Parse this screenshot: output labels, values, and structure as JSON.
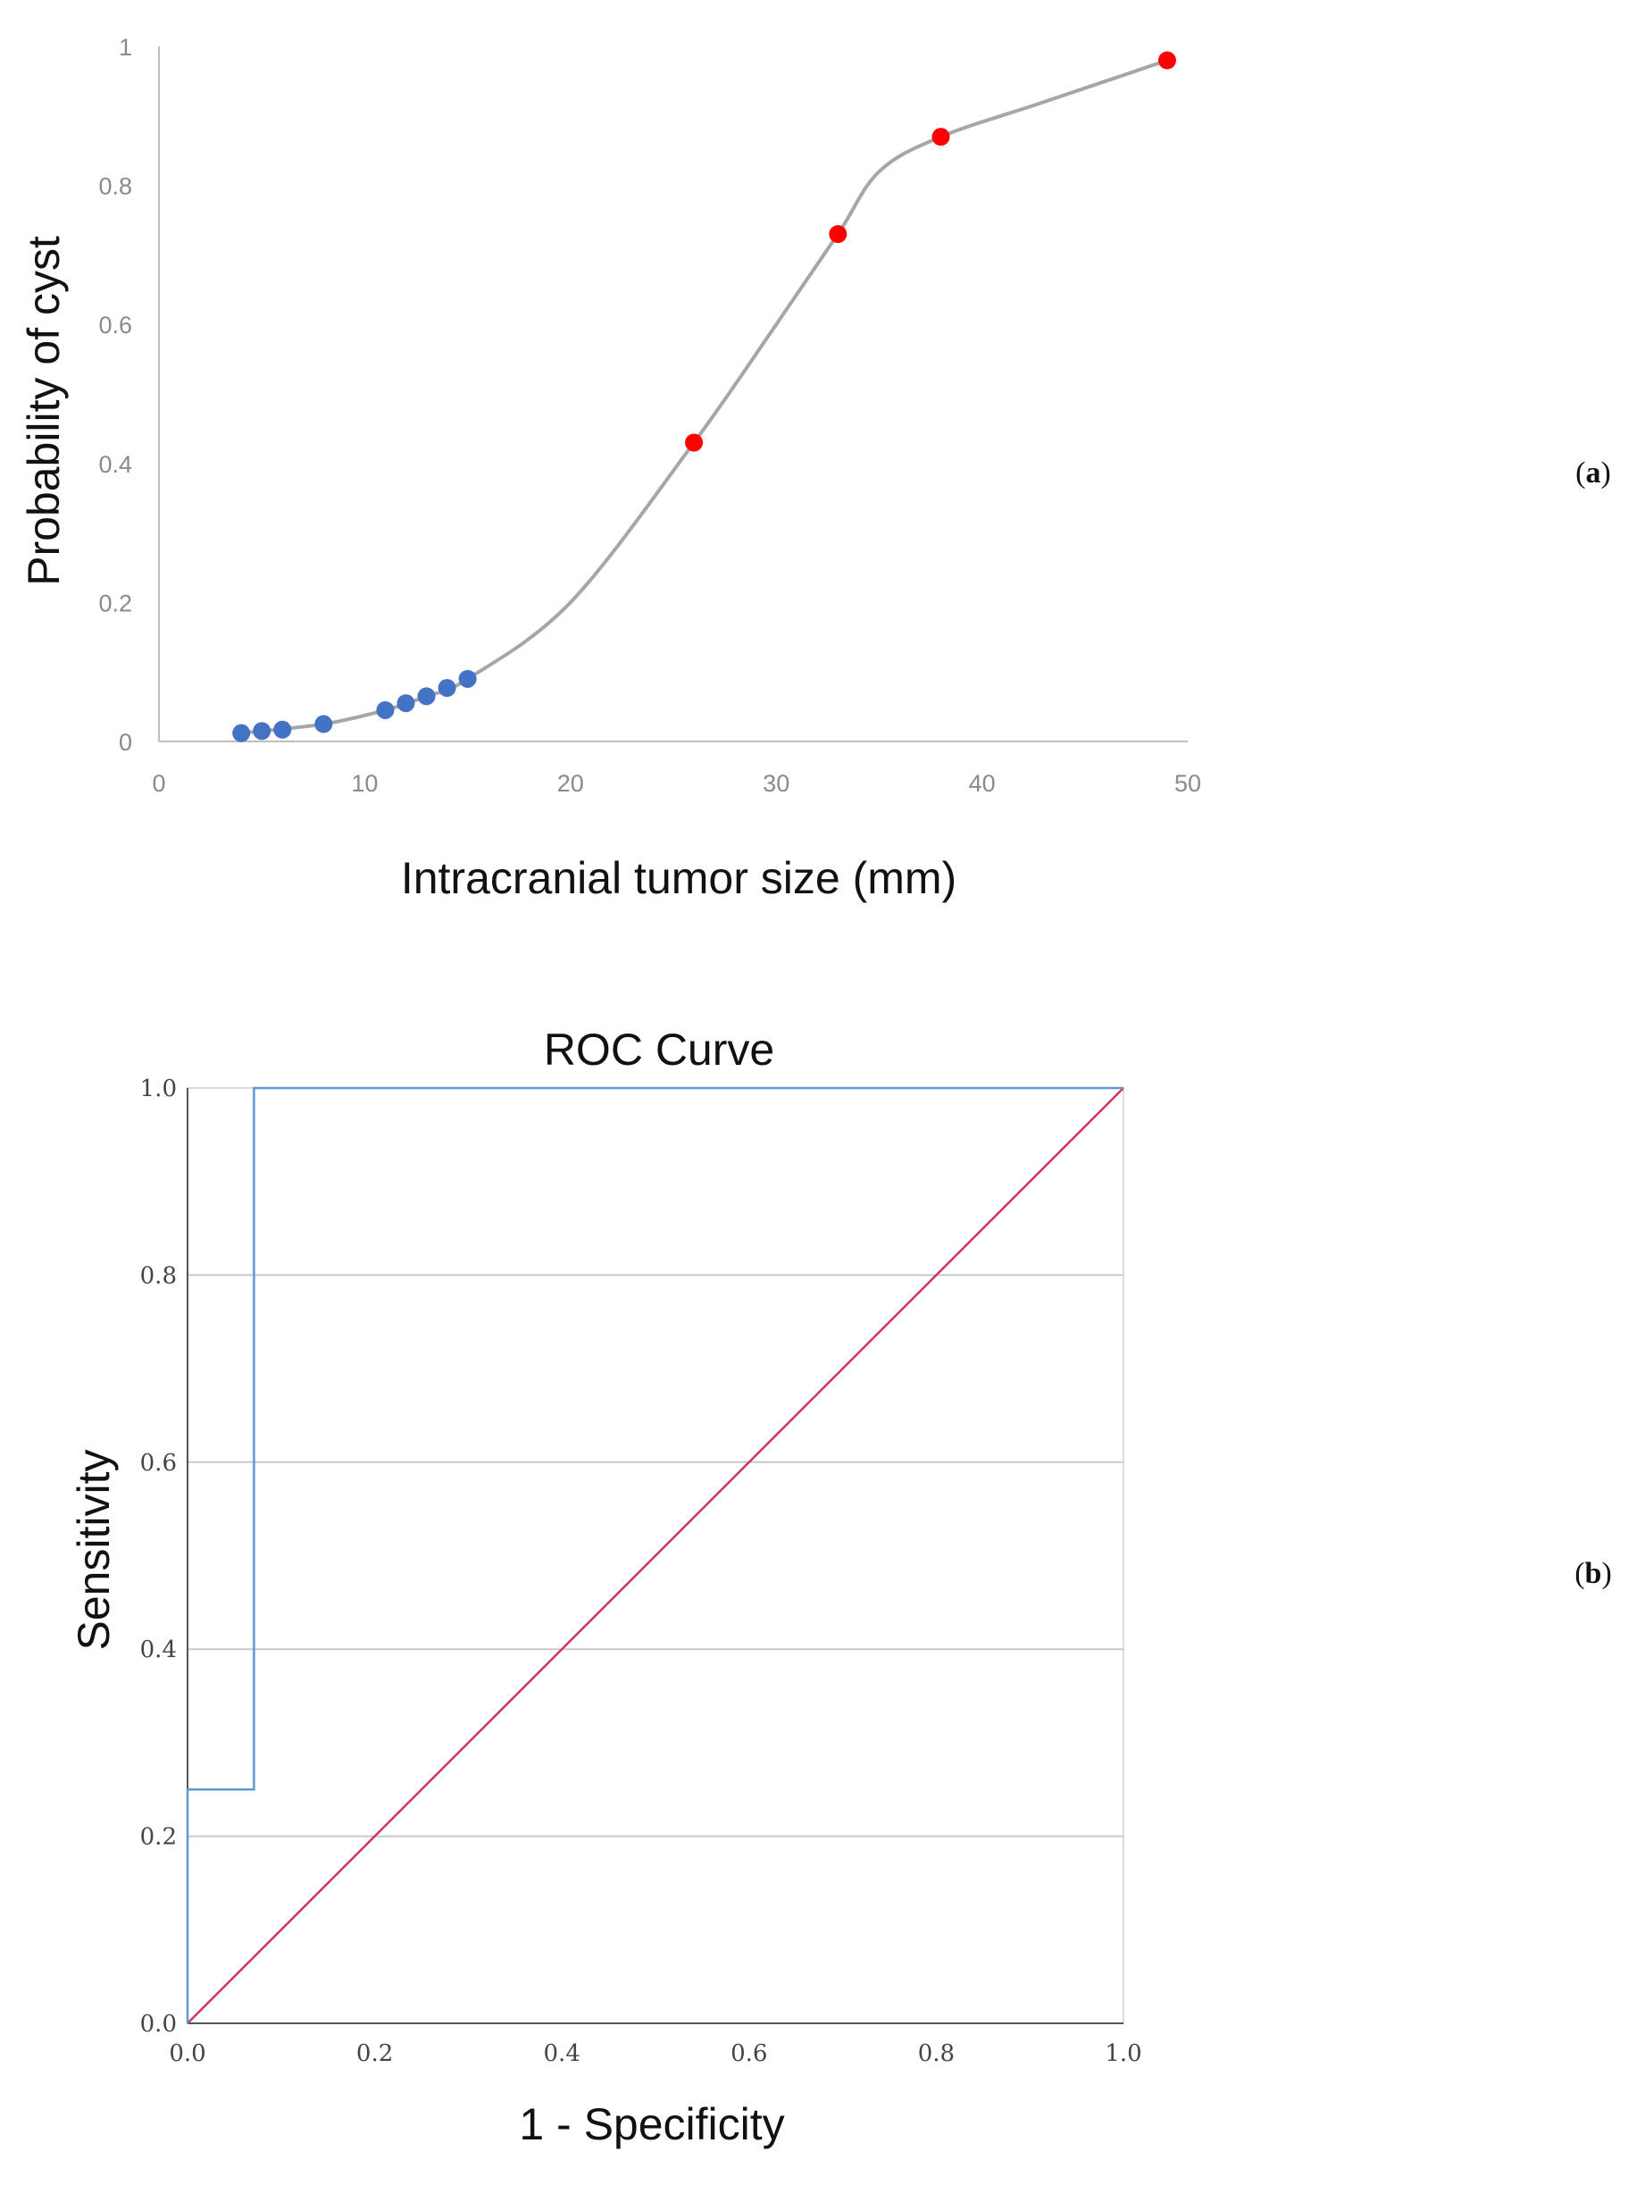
{
  "chart_data": [
    {
      "type": "scatter",
      "panel": "a",
      "panel_label": "a",
      "title": "",
      "xlabel": "Intracranial tumor size (mm)",
      "ylabel": "Probability of cyst",
      "xlim": [
        0,
        50
      ],
      "ylim": [
        0,
        1
      ],
      "xticks": [
        "0",
        "10",
        "20",
        "30",
        "40",
        "50"
      ],
      "yticks": [
        "0",
        "0.2",
        "0.4",
        "0.6",
        "0.8",
        "1"
      ],
      "grid": false,
      "curve": [
        [
          4,
          0.012
        ],
        [
          8,
          0.025
        ],
        [
          11,
          0.045
        ],
        [
          13,
          0.065
        ],
        [
          15,
          0.09
        ],
        [
          20,
          0.2
        ],
        [
          26,
          0.43
        ],
        [
          30,
          0.6
        ],
        [
          33,
          0.73
        ],
        [
          35,
          0.82
        ],
        [
          38,
          0.87
        ],
        [
          43,
          0.92
        ],
        [
          49,
          0.98
        ]
      ],
      "series": [
        {
          "name": "blue",
          "color": "#4472c4",
          "points": [
            [
              4,
              0.012
            ],
            [
              5,
              0.015
            ],
            [
              6,
              0.017
            ],
            [
              8,
              0.025
            ],
            [
              11,
              0.045
            ],
            [
              12,
              0.055
            ],
            [
              13,
              0.065
            ],
            [
              14,
              0.077
            ],
            [
              15,
              0.09
            ]
          ]
        },
        {
          "name": "red",
          "color": "#ff0000",
          "points": [
            [
              26,
              0.43
            ],
            [
              33,
              0.73
            ],
            [
              38,
              0.87
            ],
            [
              49,
              0.98
            ]
          ]
        }
      ],
      "curve_color": "#a6a6a6"
    },
    {
      "type": "line",
      "panel": "b",
      "panel_label": "b",
      "title": "ROC Curve",
      "xlabel": "1 - Specificity",
      "ylabel": "Sensitivity",
      "xlim": [
        0,
        1
      ],
      "ylim": [
        0,
        1
      ],
      "xticks": [
        "0.0",
        "0.2",
        "0.4",
        "0.6",
        "0.8",
        "1.0"
      ],
      "yticks": [
        "0.0",
        "0.2",
        "0.4",
        "0.6",
        "0.8",
        "1.0"
      ],
      "grid": true,
      "series": [
        {
          "name": "ROC",
          "color": "#5b9bd5",
          "points": [
            [
              0,
              0
            ],
            [
              0,
              0.25
            ],
            [
              0.071,
              0.25
            ],
            [
              0.071,
              1.0
            ],
            [
              1.0,
              1.0
            ]
          ]
        },
        {
          "name": "Reference line",
          "color": "#cc3366",
          "points": [
            [
              0,
              0
            ],
            [
              1,
              1
            ]
          ]
        }
      ]
    }
  ]
}
